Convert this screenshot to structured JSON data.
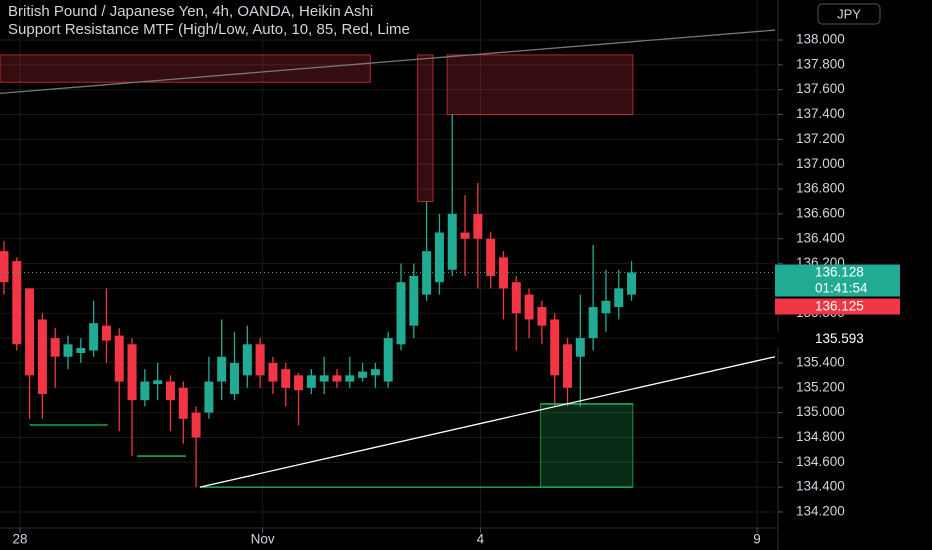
{
  "chart_data": {
    "type": "candlestick",
    "title": "British Pound / Japanese Yen, 4h, OANDA, Heikin Ashi",
    "subtitle": "Support Resistance MTF (High/Low, Auto, 10, 85, Red, Lime",
    "currency": "JPY",
    "up_color": "#22ab94",
    "down_color": "#f23645",
    "open": [
      136.3,
      136.22,
      136.0,
      135.75,
      135.6,
      135.45,
      135.48,
      135.5,
      135.7,
      135.62,
      135.55,
      135.1,
      135.23,
      135.25,
      135.2,
      135.0,
      135.0,
      135.25,
      135.15,
      135.3,
      135.55,
      135.4,
      135.35,
      135.3,
      135.2,
      135.25,
      135.3,
      135.25,
      135.28,
      135.3,
      135.25,
      135.55,
      135.7,
      135.95,
      136.05,
      136.15,
      136.45,
      136.6,
      136.4,
      136.25,
      136.05,
      135.95,
      135.85,
      135.75,
      135.55,
      135.45,
      135.6,
      135.8,
      135.85,
      135.95
    ],
    "high": [
      136.38,
      136.25,
      136.0,
      135.8,
      135.68,
      135.62,
      135.6,
      135.9,
      136.0,
      135.68,
      135.6,
      135.35,
      135.4,
      135.3,
      135.25,
      135.05,
      135.45,
      135.75,
      135.65,
      135.7,
      135.6,
      135.45,
      135.4,
      135.32,
      135.35,
      135.45,
      135.35,
      135.45,
      135.4,
      135.4,
      135.65,
      136.2,
      136.2,
      136.7,
      136.6,
      137.4,
      136.75,
      136.85,
      136.45,
      136.3,
      136.1,
      136.0,
      135.9,
      135.8,
      135.6,
      135.95,
      136.35,
      136.15,
      136.15,
      136.22
    ],
    "low": [
      135.95,
      135.5,
      134.95,
      134.95,
      135.2,
      135.35,
      135.4,
      135.45,
      135.4,
      134.85,
      134.65,
      135.05,
      135.1,
      134.85,
      134.75,
      134.4,
      134.95,
      135.1,
      135.1,
      135.2,
      135.2,
      135.15,
      135.05,
      134.9,
      135.15,
      135.15,
      135.2,
      135.2,
      135.25,
      135.2,
      135.2,
      135.5,
      135.6,
      135.9,
      135.95,
      136.1,
      136.1,
      136.0,
      136.0,
      135.75,
      135.5,
      135.6,
      135.55,
      135.05,
      135.05,
      135.05,
      135.5,
      135.65,
      135.75,
      135.9
    ],
    "close": [
      136.05,
      135.55,
      135.3,
      135.15,
      135.45,
      135.55,
      135.52,
      135.72,
      135.58,
      135.25,
      135.1,
      135.25,
      135.26,
      135.1,
      134.95,
      134.8,
      135.25,
      135.45,
      135.4,
      135.55,
      135.3,
      135.25,
      135.2,
      135.18,
      135.3,
      135.3,
      135.25,
      135.3,
      135.33,
      135.35,
      135.6,
      136.05,
      136.1,
      136.3,
      136.45,
      136.6,
      136.4,
      136.4,
      136.1,
      136.0,
      135.8,
      135.75,
      135.7,
      135.3,
      135.2,
      135.6,
      135.85,
      135.9,
      136.0,
      136.128
    ],
    "xlim": [
      -0.31,
      60.2
    ],
    "ylim": [
      134.071,
      138.322
    ],
    "grid": true,
    "xticks": [
      {
        "value": 1.25,
        "label": "28"
      },
      {
        "value": 20.2,
        "label": "Nov"
      },
      {
        "value": 37.2,
        "label": "4"
      },
      {
        "value": 58.8,
        "label": "9"
      }
    ],
    "yticks": [
      {
        "value": 134.2,
        "label": "134.200"
      },
      {
        "value": 134.4,
        "label": "134.400"
      },
      {
        "value": 134.6,
        "label": "134.600"
      },
      {
        "value": 134.8,
        "label": "134.800"
      },
      {
        "value": 135.0,
        "label": "135.000"
      },
      {
        "value": 135.2,
        "label": "135.200"
      },
      {
        "value": 135.4,
        "label": "135.400"
      },
      {
        "value": 135.6,
        "label": "135.600"
      },
      {
        "value": 135.8,
        "label": "135.800"
      },
      {
        "value": 136.0,
        "label": "136.000"
      },
      {
        "value": 136.2,
        "label": "136.200"
      },
      {
        "value": 136.4,
        "label": "136.400"
      },
      {
        "value": 136.6,
        "label": "136.600"
      },
      {
        "value": 136.8,
        "label": "136.800"
      },
      {
        "value": 137.0,
        "label": "137.000"
      },
      {
        "value": 137.2,
        "label": "137.200"
      },
      {
        "value": 137.4,
        "label": "137.400"
      },
      {
        "value": 137.6,
        "label": "137.600"
      },
      {
        "value": 137.8,
        "label": "137.800"
      },
      {
        "value": 138.0,
        "label": "138.000"
      }
    ],
    "price_labels": [
      {
        "value": 136.128,
        "label": "136.128",
        "color": "#22ab94",
        "countdown": "01:41:54"
      },
      {
        "value": 136.125,
        "label": "136.125",
        "color": "#f23645"
      },
      {
        "value": 135.593,
        "label": "135.593",
        "color": "#000000"
      }
    ],
    "zones": [
      {
        "x": [
          -0.31,
          28.6
        ],
        "y": [
          137.66,
          137.88
        ],
        "color": "#f23645"
      },
      {
        "x": [
          34.6,
          49.1
        ],
        "y": [
          137.4,
          137.88
        ],
        "color": "#f23645"
      },
      {
        "x": [
          32.3,
          33.5
        ],
        "y": [
          136.7,
          137.88
        ],
        "color": "#f23645"
      },
      {
        "x": [
          41.9,
          49.1
        ],
        "y": [
          134.4,
          135.07
        ],
        "color": "#22c55e"
      }
    ],
    "lines": [
      {
        "x": [
          2.0,
          8.1
        ],
        "y": [
          134.9,
          134.9
        ],
        "color": "#22c55e"
      },
      {
        "x": [
          10.4,
          14.2
        ],
        "y": [
          134.65,
          134.65
        ],
        "color": "#22c55e"
      },
      {
        "x": [
          15.3,
          49.1
        ],
        "y": [
          134.4,
          134.4
        ],
        "color": "#22c55e"
      },
      {
        "x": [
          41.9,
          49.1
        ],
        "y": [
          135.07,
          135.07
        ],
        "color": "#22c55e"
      },
      {
        "x": [
          15.3,
          60.2
        ],
        "y": [
          134.4,
          135.45
        ],
        "color": "#ffffff"
      },
      {
        "x": [
          -0.31,
          60.2
        ],
        "y": [
          137.57,
          138.08
        ],
        "color": "#777777"
      }
    ]
  }
}
